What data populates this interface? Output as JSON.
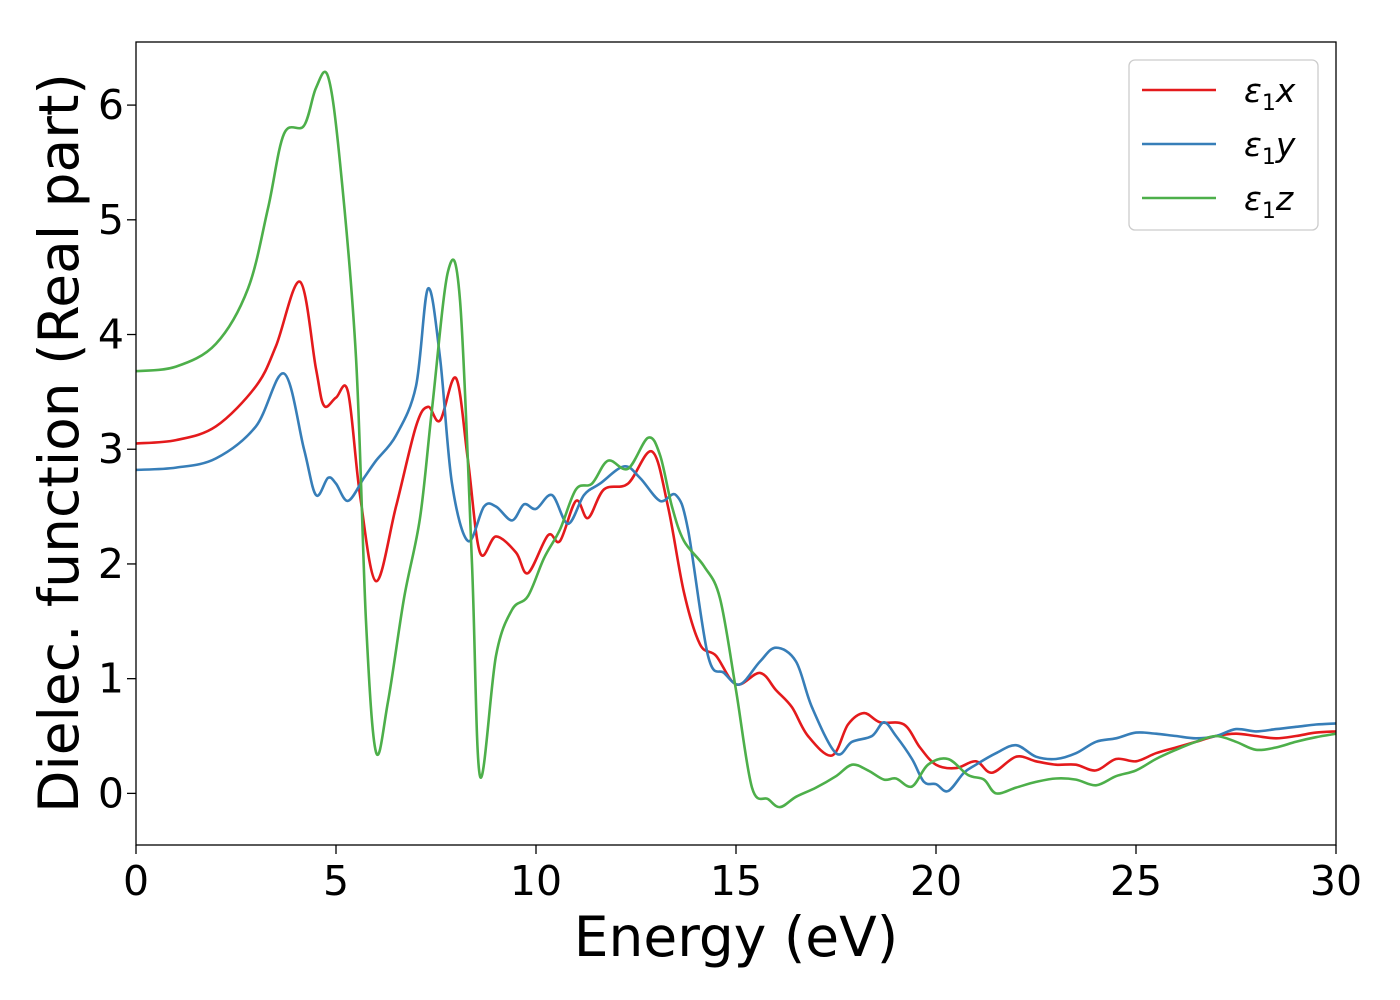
{
  "chart_data": {
    "type": "line",
    "xlabel": "Energy (eV)",
    "ylabel": "Dielec. function (Real part)",
    "xlim": [
      0,
      30
    ],
    "ylim": [
      -0.45,
      6.55
    ],
    "xticks": [
      0,
      5,
      10,
      15,
      20,
      25,
      30
    ],
    "yticks": [
      0,
      1,
      2,
      3,
      4,
      5,
      6
    ],
    "legend_position": "top-right",
    "grid": false,
    "series": [
      {
        "name": "ε1x",
        "legend_base": "ε",
        "legend_sub": "1",
        "legend_var": "x",
        "color": "#e41a1c",
        "points": [
          [
            0,
            3.05
          ],
          [
            1,
            3.08
          ],
          [
            2,
            3.2
          ],
          [
            3,
            3.55
          ],
          [
            3.5,
            3.9
          ],
          [
            4.1,
            4.46
          ],
          [
            4.5,
            3.7
          ],
          [
            4.7,
            3.38
          ],
          [
            5,
            3.45
          ],
          [
            5.3,
            3.5
          ],
          [
            5.6,
            2.6
          ],
          [
            6,
            1.85
          ],
          [
            6.5,
            2.5
          ],
          [
            7,
            3.2
          ],
          [
            7.3,
            3.37
          ],
          [
            7.6,
            3.25
          ],
          [
            8,
            3.62
          ],
          [
            8.3,
            2.9
          ],
          [
            8.6,
            2.1
          ],
          [
            9,
            2.24
          ],
          [
            9.5,
            2.1
          ],
          [
            9.8,
            1.92
          ],
          [
            10.3,
            2.25
          ],
          [
            10.6,
            2.2
          ],
          [
            11,
            2.55
          ],
          [
            11.3,
            2.4
          ],
          [
            11.7,
            2.65
          ],
          [
            12.3,
            2.7
          ],
          [
            12.9,
            2.98
          ],
          [
            13.3,
            2.5
          ],
          [
            13.7,
            1.75
          ],
          [
            14.1,
            1.3
          ],
          [
            14.5,
            1.2
          ],
          [
            15,
            0.95
          ],
          [
            15.6,
            1.05
          ],
          [
            16,
            0.9
          ],
          [
            16.4,
            0.75
          ],
          [
            16.8,
            0.5
          ],
          [
            17.4,
            0.33
          ],
          [
            17.8,
            0.6
          ],
          [
            18.2,
            0.7
          ],
          [
            18.6,
            0.62
          ],
          [
            19.2,
            0.6
          ],
          [
            19.6,
            0.4
          ],
          [
            20,
            0.25
          ],
          [
            20.5,
            0.22
          ],
          [
            21,
            0.28
          ],
          [
            21.4,
            0.18
          ],
          [
            22,
            0.32
          ],
          [
            22.5,
            0.28
          ],
          [
            23,
            0.25
          ],
          [
            23.5,
            0.25
          ],
          [
            24,
            0.2
          ],
          [
            24.5,
            0.3
          ],
          [
            25,
            0.28
          ],
          [
            25.5,
            0.35
          ],
          [
            26,
            0.4
          ],
          [
            26.5,
            0.45
          ],
          [
            27,
            0.5
          ],
          [
            27.5,
            0.52
          ],
          [
            28,
            0.5
          ],
          [
            28.5,
            0.48
          ],
          [
            29,
            0.5
          ],
          [
            29.5,
            0.53
          ],
          [
            30,
            0.54
          ]
        ]
      },
      {
        "name": "ε1y",
        "legend_base": "ε",
        "legend_sub": "1",
        "legend_var": "y",
        "color": "#377eb8",
        "points": [
          [
            0,
            2.82
          ],
          [
            1,
            2.84
          ],
          [
            2,
            2.92
          ],
          [
            3,
            3.2
          ],
          [
            3.7,
            3.66
          ],
          [
            4.2,
            3.0
          ],
          [
            4.5,
            2.6
          ],
          [
            4.8,
            2.75
          ],
          [
            5,
            2.7
          ],
          [
            5.3,
            2.55
          ],
          [
            5.7,
            2.75
          ],
          [
            6,
            2.9
          ],
          [
            6.5,
            3.12
          ],
          [
            7,
            3.55
          ],
          [
            7.3,
            4.4
          ],
          [
            7.6,
            3.8
          ],
          [
            7.9,
            2.7
          ],
          [
            8.3,
            2.2
          ],
          [
            8.7,
            2.5
          ],
          [
            9,
            2.5
          ],
          [
            9.4,
            2.38
          ],
          [
            9.7,
            2.52
          ],
          [
            10,
            2.48
          ],
          [
            10.4,
            2.6
          ],
          [
            10.8,
            2.35
          ],
          [
            11.2,
            2.6
          ],
          [
            11.6,
            2.7
          ],
          [
            12.2,
            2.85
          ],
          [
            12.6,
            2.75
          ],
          [
            13.1,
            2.55
          ],
          [
            13.5,
            2.6
          ],
          [
            13.8,
            2.3
          ],
          [
            14.3,
            1.2
          ],
          [
            14.7,
            1.05
          ],
          [
            15.1,
            0.95
          ],
          [
            15.6,
            1.15
          ],
          [
            16,
            1.27
          ],
          [
            16.5,
            1.15
          ],
          [
            16.9,
            0.75
          ],
          [
            17.5,
            0.35
          ],
          [
            17.9,
            0.45
          ],
          [
            18.4,
            0.5
          ],
          [
            18.7,
            0.62
          ],
          [
            19,
            0.5
          ],
          [
            19.4,
            0.3
          ],
          [
            19.7,
            0.1
          ],
          [
            20,
            0.08
          ],
          [
            20.3,
            0.02
          ],
          [
            20.7,
            0.18
          ],
          [
            21,
            0.25
          ],
          [
            21.5,
            0.35
          ],
          [
            22,
            0.42
          ],
          [
            22.5,
            0.32
          ],
          [
            23,
            0.3
          ],
          [
            23.5,
            0.35
          ],
          [
            24,
            0.45
          ],
          [
            24.5,
            0.48
          ],
          [
            25,
            0.53
          ],
          [
            25.5,
            0.52
          ],
          [
            26,
            0.5
          ],
          [
            26.5,
            0.48
          ],
          [
            27,
            0.5
          ],
          [
            27.5,
            0.56
          ],
          [
            28,
            0.54
          ],
          [
            28.5,
            0.56
          ],
          [
            29,
            0.58
          ],
          [
            29.5,
            0.6
          ],
          [
            30,
            0.61
          ]
        ]
      },
      {
        "name": "ε1z",
        "legend_base": "ε",
        "legend_sub": "1",
        "legend_var": "z",
        "color": "#4daf4a",
        "points": [
          [
            0,
            3.68
          ],
          [
            1,
            3.72
          ],
          [
            2,
            3.92
          ],
          [
            2.8,
            4.4
          ],
          [
            3.3,
            5.1
          ],
          [
            3.7,
            5.75
          ],
          [
            4.2,
            5.82
          ],
          [
            4.5,
            6.15
          ],
          [
            4.8,
            6.25
          ],
          [
            5.1,
            5.5
          ],
          [
            5.5,
            3.8
          ],
          [
            5.75,
            1.5
          ],
          [
            6,
            0.36
          ],
          [
            6.3,
            0.8
          ],
          [
            6.7,
            1.7
          ],
          [
            7.1,
            2.4
          ],
          [
            7.4,
            3.35
          ],
          [
            7.8,
            4.55
          ],
          [
            8.1,
            4.3
          ],
          [
            8.4,
            2.0
          ],
          [
            8.6,
            0.15
          ],
          [
            9,
            1.2
          ],
          [
            9.4,
            1.6
          ],
          [
            9.8,
            1.72
          ],
          [
            10.2,
            2.05
          ],
          [
            10.6,
            2.3
          ],
          [
            11,
            2.65
          ],
          [
            11.4,
            2.7
          ],
          [
            11.8,
            2.9
          ],
          [
            12.3,
            2.83
          ],
          [
            12.8,
            3.1
          ],
          [
            13.1,
            2.95
          ],
          [
            13.4,
            2.5
          ],
          [
            13.7,
            2.2
          ],
          [
            14.2,
            1.98
          ],
          [
            14.6,
            1.7
          ],
          [
            15,
            0.9
          ],
          [
            15.4,
            0.05
          ],
          [
            15.8,
            -0.05
          ],
          [
            16.1,
            -0.12
          ],
          [
            16.5,
            -0.03
          ],
          [
            17,
            0.05
          ],
          [
            17.5,
            0.15
          ],
          [
            17.9,
            0.25
          ],
          [
            18.3,
            0.2
          ],
          [
            18.7,
            0.12
          ],
          [
            19,
            0.13
          ],
          [
            19.4,
            0.06
          ],
          [
            19.8,
            0.25
          ],
          [
            20.3,
            0.3
          ],
          [
            20.8,
            0.16
          ],
          [
            21.2,
            0.12
          ],
          [
            21.5,
            0.0
          ],
          [
            22,
            0.05
          ],
          [
            22.5,
            0.1
          ],
          [
            23,
            0.13
          ],
          [
            23.5,
            0.12
          ],
          [
            24,
            0.07
          ],
          [
            24.5,
            0.15
          ],
          [
            25,
            0.2
          ],
          [
            25.5,
            0.3
          ],
          [
            26,
            0.38
          ],
          [
            26.5,
            0.45
          ],
          [
            27,
            0.5
          ],
          [
            27.5,
            0.45
          ],
          [
            28,
            0.38
          ],
          [
            28.5,
            0.4
          ],
          [
            29,
            0.45
          ],
          [
            29.5,
            0.49
          ],
          [
            30,
            0.52
          ]
        ]
      }
    ]
  }
}
